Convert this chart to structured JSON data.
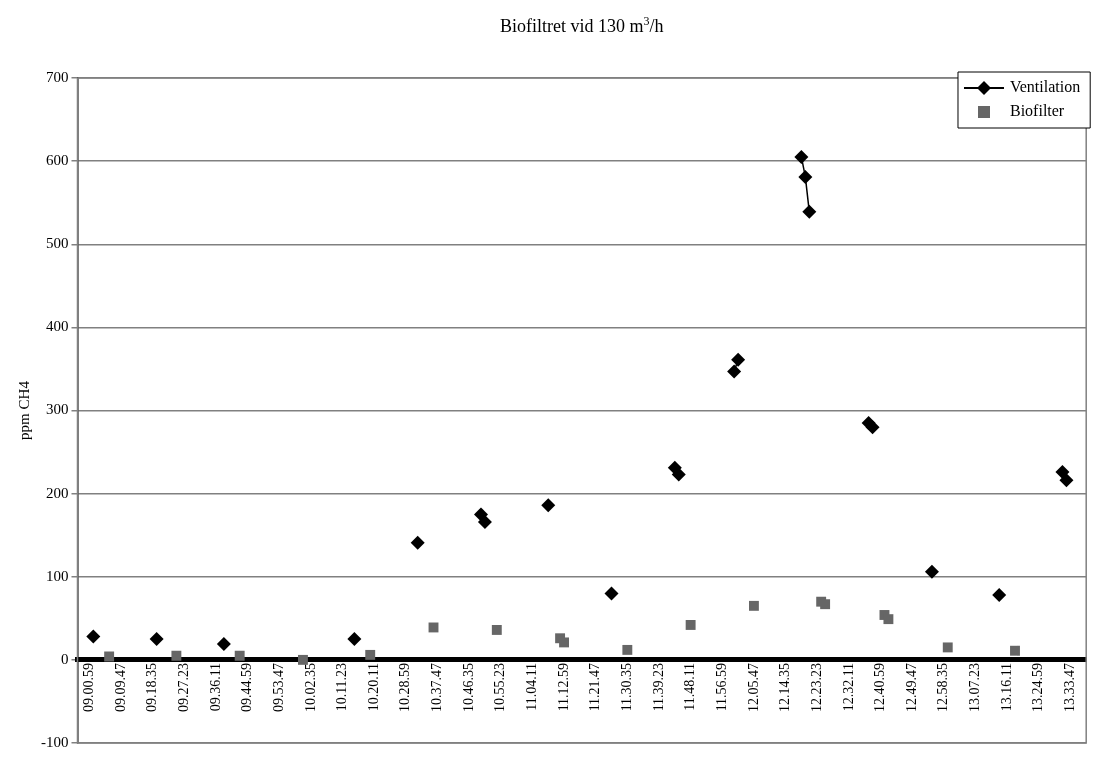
{
  "chart_data": {
    "type": "line",
    "title": "Biofiltret vid 130 m$^{3}$/h",
    "ylabel": "ppm CH4",
    "categories": [
      null,
      null,
      null,
      "09.00.59",
      null,
      null,
      null,
      null,
      null,
      null,
      null,
      "09.09.47",
      null,
      null,
      null,
      null,
      null,
      null,
      null,
      "09.18.35",
      null,
      null,
      null,
      null,
      null,
      null,
      null,
      "09.27.23",
      null,
      null,
      null,
      null,
      null,
      null,
      null,
      "09.36.11",
      null,
      null,
      null,
      null,
      null,
      null,
      null,
      "09.44.59",
      null,
      null,
      null,
      null,
      null,
      null,
      null,
      "09.53.47",
      null,
      null,
      null,
      null,
      null,
      null,
      null,
      "10.02.35",
      null,
      null,
      null,
      null,
      null,
      null,
      null,
      "10.11.23",
      null,
      null,
      null,
      null,
      null,
      null,
      null,
      "10.20.11",
      null,
      null,
      null,
      null,
      null,
      null,
      null,
      "10.28.59",
      null,
      null,
      null,
      null,
      null,
      null,
      null,
      "10.37.47",
      null,
      null,
      null,
      null,
      null,
      null,
      null,
      "10.46.35",
      null,
      null,
      null,
      null,
      null,
      null,
      null,
      "10.55.23",
      null,
      null,
      null,
      null,
      null,
      null,
      null,
      "11.04.11",
      null,
      null,
      null,
      null,
      null,
      null,
      null,
      "11.12.59",
      null,
      null,
      null,
      null,
      null,
      null,
      null,
      "11.21.47",
      null,
      null,
      null,
      null,
      null,
      null,
      null,
      "11.30.35",
      null,
      null,
      null,
      null,
      null,
      null,
      null,
      "11.39.23",
      null,
      null,
      null,
      null,
      null,
      null,
      null,
      "11.48.11",
      null,
      null,
      null,
      null,
      null,
      null,
      null,
      "11.56.59",
      null,
      null,
      null,
      null,
      null,
      null,
      null,
      "12.05.47",
      null,
      null,
      null,
      null,
      null,
      null,
      null,
      "12.14.35",
      null,
      null,
      null,
      null,
      null,
      null,
      null,
      "12.23.23",
      null,
      null,
      null,
      null,
      null,
      null,
      null,
      "12.32.11",
      null,
      null,
      null,
      null,
      null,
      null,
      null,
      "12.40.59",
      null,
      null,
      null,
      null,
      null,
      null,
      null,
      "12.49.47",
      null,
      null,
      null,
      null,
      null,
      null,
      null,
      "12.58.35",
      null,
      null,
      null,
      null,
      null,
      null,
      null,
      "13.07.23",
      null,
      null,
      null,
      null,
      null,
      null,
      null,
      "13.16.11",
      null,
      null,
      null,
      null,
      null,
      null,
      null,
      "13.24.59",
      null,
      null,
      null,
      null,
      null,
      null,
      null,
      "13.33.47",
      null,
      null,
      null,
      null
    ],
    "ylim": [
      -100,
      700
    ],
    "yticks": [
      -100,
      0,
      100,
      200,
      300,
      400,
      500,
      600,
      700
    ],
    "grid": "y",
    "legend": "top right",
    "series": [
      {
        "name": "Ventilation",
        "color": "#000000",
        "marker": "diamond",
        "values": [
          null,
          null,
          null,
          null,
          28,
          null,
          null,
          null,
          null,
          null,
          null,
          null,
          null,
          null,
          null,
          null,
          null,
          null,
          null,
          null,
          25,
          null,
          null,
          null,
          null,
          null,
          null,
          null,
          null,
          null,
          null,
          null,
          null,
          null,
          null,
          null,
          null,
          19,
          null,
          null,
          null,
          null,
          null,
          null,
          null,
          null,
          null,
          null,
          null,
          null,
          null,
          null,
          null,
          null,
          null,
          null,
          null,
          null,
          null,
          null,
          null,
          null,
          null,
          null,
          null,
          null,
          null,
          null,
          null,
          null,
          25,
          null,
          null,
          null,
          null,
          null,
          null,
          null,
          null,
          null,
          null,
          null,
          null,
          null,
          null,
          null,
          141,
          null,
          null,
          null,
          null,
          null,
          null,
          null,
          null,
          null,
          null,
          null,
          null,
          null,
          null,
          null,
          175,
          166,
          null,
          null,
          null,
          null,
          null,
          null,
          null,
          null,
          null,
          null,
          null,
          null,
          null,
          null,
          null,
          186,
          null,
          null,
          null,
          null,
          null,
          null,
          null,
          null,
          null,
          null,
          null,
          null,
          null,
          null,
          null,
          80,
          null,
          null,
          null,
          null,
          null,
          null,
          null,
          null,
          null,
          null,
          null,
          null,
          null,
          null,
          null,
          231,
          223,
          null,
          null,
          null,
          null,
          null,
          null,
          null,
          null,
          null,
          null,
          null,
          null,
          null,
          347,
          361,
          null,
          null,
          null,
          null,
          null,
          null,
          null,
          null,
          null,
          null,
          null,
          null,
          null,
          null,
          null,
          605,
          581,
          539,
          null,
          null,
          null,
          null,
          null,
          null,
          null,
          null,
          null,
          null,
          null,
          null,
          null,
          null,
          285,
          280,
          null,
          null,
          null,
          null,
          null,
          null,
          null,
          null,
          null,
          null,
          null,
          null,
          null,
          null,
          106,
          null,
          null,
          null,
          null,
          null,
          null,
          null,
          null,
          null,
          null,
          null,
          null,
          null,
          null,
          null,
          null,
          78,
          null,
          null,
          null,
          null,
          null,
          null,
          null,
          null,
          null,
          null,
          null,
          null,
          null,
          null,
          null,
          226,
          216,
          null,
          null,
          null,
          null,
          null
        ]
      },
      {
        "name": "Biofilter",
        "type": "scatter",
        "color": "#666666",
        "marker": "square",
        "values": [
          null,
          null,
          null,
          null,
          null,
          null,
          null,
          null,
          4,
          null,
          null,
          null,
          null,
          null,
          null,
          null,
          null,
          null,
          null,
          null,
          null,
          null,
          null,
          null,
          null,
          5,
          null,
          null,
          null,
          null,
          null,
          null,
          null,
          null,
          null,
          null,
          null,
          null,
          null,
          null,
          null,
          5,
          null,
          null,
          null,
          null,
          null,
          null,
          null,
          null,
          null,
          null,
          null,
          null,
          null,
          null,
          null,
          0,
          null,
          null,
          null,
          null,
          null,
          null,
          null,
          null,
          null,
          null,
          null,
          null,
          null,
          null,
          null,
          null,
          6,
          null,
          null,
          null,
          null,
          null,
          null,
          null,
          null,
          null,
          null,
          null,
          null,
          null,
          null,
          null,
          39,
          null,
          null,
          null,
          null,
          null,
          null,
          null,
          null,
          null,
          null,
          null,
          null,
          null,
          null,
          null,
          36,
          null,
          null,
          null,
          null,
          null,
          null,
          null,
          null,
          null,
          null,
          null,
          null,
          null,
          null,
          null,
          26,
          21,
          null,
          null,
          null,
          null,
          null,
          null,
          null,
          null,
          null,
          null,
          null,
          null,
          null,
          null,
          null,
          12,
          null,
          null,
          null,
          null,
          null,
          null,
          null,
          null,
          null,
          null,
          null,
          null,
          null,
          null,
          null,
          42,
          null,
          null,
          null,
          null,
          null,
          null,
          null,
          null,
          null,
          null,
          null,
          null,
          null,
          null,
          null,
          65,
          null,
          null,
          null,
          null,
          null,
          null,
          null,
          null,
          null,
          null,
          null,
          null,
          null,
          null,
          null,
          null,
          70,
          67,
          null,
          null,
          null,
          null,
          null,
          null,
          null,
          null,
          null,
          null,
          null,
          null,
          null,
          null,
          54,
          49,
          null,
          null,
          null,
          null,
          null,
          null,
          null,
          null,
          null,
          null,
          null,
          null,
          null,
          null,
          15,
          null,
          null,
          null,
          null,
          null,
          null,
          null,
          null,
          null,
          null,
          null,
          null,
          null,
          null,
          null,
          null,
          11,
          null,
          null,
          null,
          null,
          null,
          null,
          null,
          null,
          null,
          null,
          null,
          null,
          null,
          null,
          null,
          null,
          null,
          null
        ]
      }
    ]
  }
}
